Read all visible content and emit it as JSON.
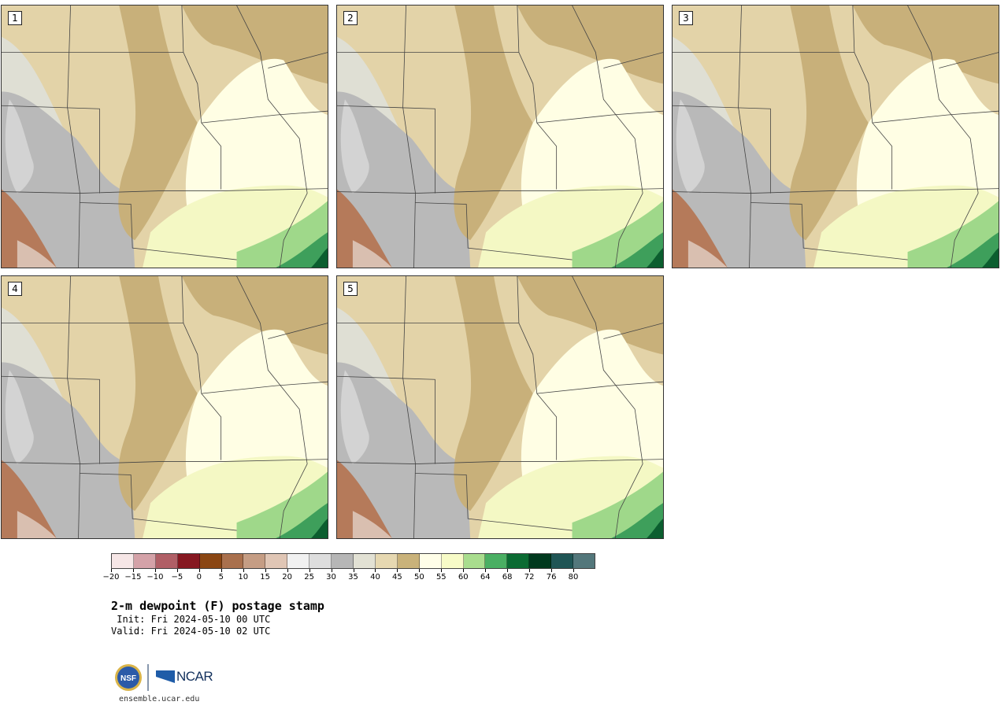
{
  "panels": [
    {
      "label": "1"
    },
    {
      "label": "2"
    },
    {
      "label": "3"
    },
    {
      "label": "4"
    },
    {
      "label": "5"
    }
  ],
  "colorbar": {
    "colors": [
      "#f6e6e6",
      "#d4a2a8",
      "#b05f66",
      "#861821",
      "#8a4613",
      "#a9704d",
      "#c59d84",
      "#e0c6b5",
      "#f1f1f1",
      "#dddddd",
      "#b6b6b6",
      "#e2e1d4",
      "#e6d8b1",
      "#c9b27a",
      "#fffee8",
      "#f7fbc7",
      "#a9dd8e",
      "#4aaf63",
      "#0b6b33",
      "#00391e",
      "#1f5555",
      "#53777b"
    ],
    "ticks": [
      "−20",
      "−15",
      "−10",
      "−5",
      "0",
      "5",
      "10",
      "15",
      "20",
      "25",
      "30",
      "35",
      "40",
      "45",
      "50",
      "55",
      "60",
      "64",
      "68",
      "72",
      "76",
      "80"
    ]
  },
  "title": "2-m dewpoint (F) postage stamp",
  "init": " Init: Fri 2024-05-10 00 UTC",
  "valid": "Valid: Fri 2024-05-10 02 UTC",
  "logo": {
    "text": "NCAR",
    "site": "ensemble.ucar.edu"
  }
}
